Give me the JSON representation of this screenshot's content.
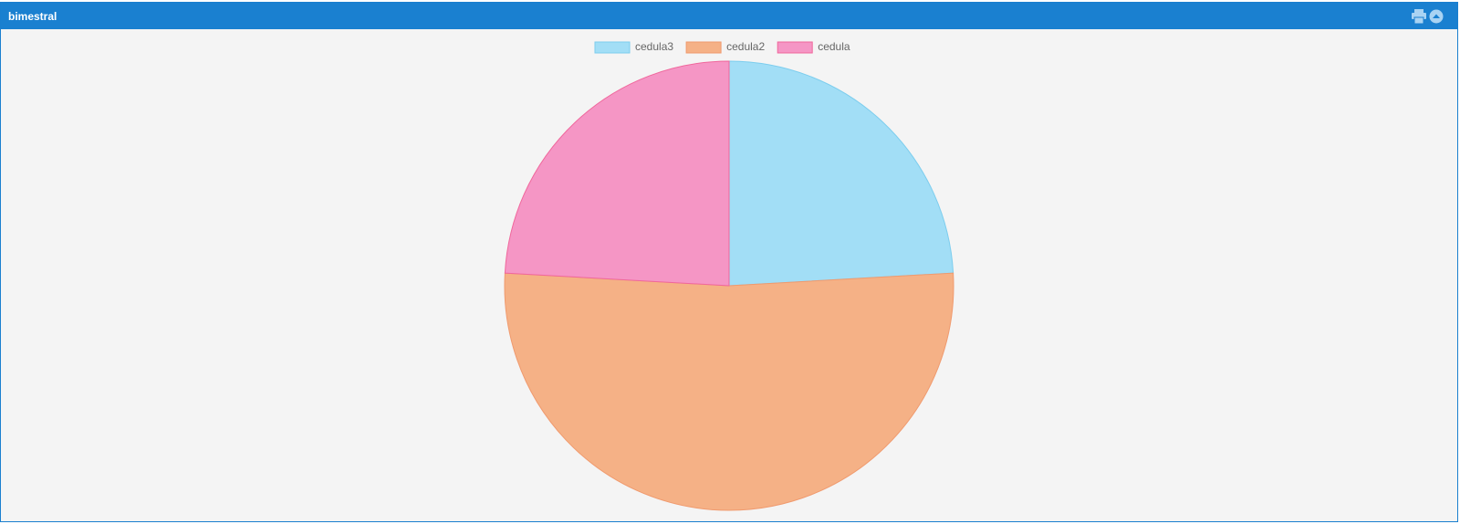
{
  "header": {
    "title": "bimestral"
  },
  "chart_data": {
    "type": "pie",
    "categories": [
      "cedula3",
      "cedula2",
      "cedula"
    ],
    "values": [
      24.1,
      51.8,
      24.1
    ],
    "colors": [
      "#a2def6",
      "#f5b186",
      "#f596c5"
    ],
    "border_colors": [
      "#7ccdee",
      "#f09a6e",
      "#f0679c"
    ],
    "legend": "top"
  }
}
